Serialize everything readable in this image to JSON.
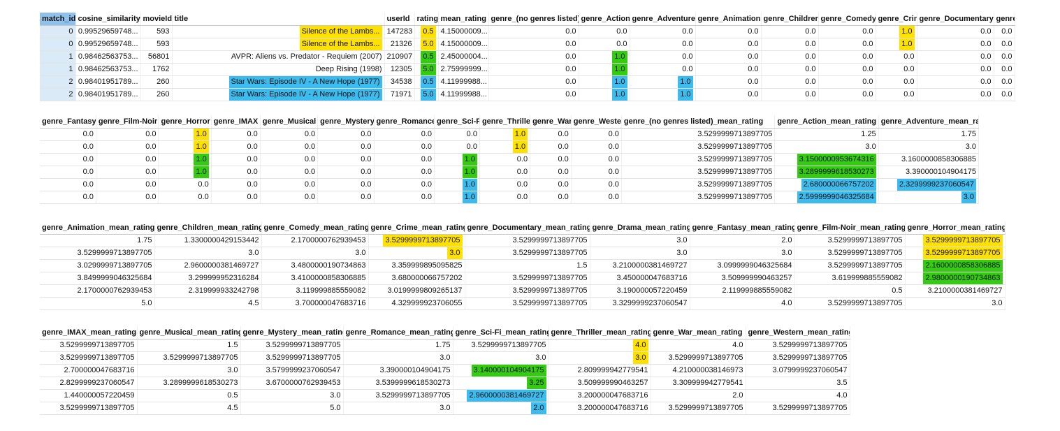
{
  "tables": [
    {
      "headers": [
        "match_id",
        "cosine_similarity",
        "movieId",
        "title",
        "userId",
        "rating",
        "mean_rating",
        "genre_(no genres listed)",
        "genre_Action",
        "genre_Adventure",
        "genre_Animation",
        "genre_Children",
        "genre_Comedy",
        "genre_Crime",
        "genre_Documentary",
        "genre_Drama"
      ],
      "rows": [
        [
          "0",
          "0.99529659748...",
          "593",
          "Silence of the Lambs...",
          "147283",
          "0.5",
          "4.15000009...",
          "0.0",
          "0.0",
          "0.0",
          "0.0",
          "0.0",
          "0.0",
          "1.0",
          "0.0",
          "0.0"
        ],
        [
          "0",
          "0.99529659748...",
          "593",
          "Silence of the Lambs...",
          "21326",
          "5.0",
          "4.15000009...",
          "0.0",
          "0.0",
          "0.0",
          "0.0",
          "0.0",
          "0.0",
          "1.0",
          "0.0",
          "0.0"
        ],
        [
          "1",
          "0.98462563753...",
          "56801",
          "AVPR: Aliens vs. Predator - Requiem (2007)",
          "210907",
          "0.5",
          "2.45000004...",
          "0.0",
          "1.0",
          "0.0",
          "0.0",
          "0.0",
          "0.0",
          "0.0",
          "0.0",
          "0.0"
        ],
        [
          "1",
          "0.98462563753...",
          "1762",
          "Deep Rising (1998)",
          "12305",
          "5.0",
          "2.75999999...",
          "0.0",
          "1.0",
          "0.0",
          "0.0",
          "0.0",
          "0.0",
          "0.0",
          "0.0",
          "0.0"
        ],
        [
          "2",
          "0.98401951789...",
          "260",
          "Star Wars: Episode IV - A New Hope (1977)",
          "34538",
          "0.5",
          "4.11999988...",
          "0.0",
          "1.0",
          "1.0",
          "0.0",
          "0.0",
          "0.0",
          "0.0",
          "0.0",
          "0.0"
        ],
        [
          "2",
          "0.98401951789...",
          "260",
          "Star Wars: Episode IV - A New Hope (1977)",
          "71971",
          "5.0",
          "4.11999988...",
          "0.0",
          "1.0",
          "1.0",
          "0.0",
          "0.0",
          "0.0",
          "0.0",
          "0.0",
          "0.0"
        ]
      ]
    },
    {
      "headers": [
        "genre_Fantasy",
        "genre_Film-Noir",
        "genre_Horror",
        "genre_IMAX",
        "genre_Musical",
        "genre_Mystery",
        "genre_Romance",
        "genre_Sci-Fi",
        "genre_Thriller",
        "genre_War",
        "genre_Western",
        "genre_(no genres listed)_mean_rating",
        "genre_Action_mean_rating",
        "genre_Adventure_mean_rating"
      ],
      "rows": [
        [
          "0.0",
          "0.0",
          "1.0",
          "0.0",
          "0.0",
          "0.0",
          "0.0",
          "0.0",
          "1.0",
          "0.0",
          "0.0",
          "3.5299999713897705",
          "1.25",
          "1.75"
        ],
        [
          "0.0",
          "0.0",
          "1.0",
          "0.0",
          "0.0",
          "0.0",
          "0.0",
          "0.0",
          "1.0",
          "0.0",
          "0.0",
          "3.5299999713897705",
          "3.0",
          "3.0"
        ],
        [
          "0.0",
          "0.0",
          "1.0",
          "0.0",
          "0.0",
          "0.0",
          "0.0",
          "1.0",
          "0.0",
          "0.0",
          "0.0",
          "3.5299999713897705",
          "3.1500000953674316",
          "3.1600000858306885"
        ],
        [
          "0.0",
          "0.0",
          "1.0",
          "0.0",
          "0.0",
          "0.0",
          "0.0",
          "1.0",
          "0.0",
          "0.0",
          "0.0",
          "3.5299999713897705",
          "3.2899999618530273",
          "3.390000104904175"
        ],
        [
          "0.0",
          "0.0",
          "0.0",
          "0.0",
          "0.0",
          "0.0",
          "0.0",
          "1.0",
          "0.0",
          "0.0",
          "0.0",
          "3.5299999713897705",
          "2.680000066757202",
          "2.3299999237060547"
        ],
        [
          "0.0",
          "0.0",
          "0.0",
          "0.0",
          "0.0",
          "0.0",
          "0.0",
          "1.0",
          "0.0",
          "0.0",
          "0.0",
          "3.5299999713897705",
          "2.5999999046325684",
          "3.0"
        ]
      ]
    },
    {
      "headers": [
        "genre_Animation_mean_rating",
        "genre_Children_mean_rating",
        "genre_Comedy_mean_rating",
        "genre_Crime_mean_rating",
        "genre_Documentary_mean_rating",
        "genre_Drama_mean_rating",
        "genre_Fantasy_mean_rating",
        "genre_Film-Noir_mean_rating",
        "genre_Horror_mean_rating"
      ],
      "rows": [
        [
          "1.75",
          "1.3300000429153442",
          "2.1700000762939453",
          "3.5299999713897705",
          "3.5299999713897705",
          "3.0",
          "2.0",
          "3.5299999713897705",
          "3.5299999713897705"
        ],
        [
          "3.5299999713897705",
          "3.0",
          "3.0",
          "3.0",
          "3.5299999713897705",
          "3.0",
          "3.0",
          "3.5299999713897705",
          "3.5299999713897705"
        ],
        [
          "3.0299999713897705",
          "2.9600000381469727",
          "3.4800000190734863",
          "3.359999895095825",
          "1.5",
          "3.2100000381469727",
          "3.0999999046325684",
          "3.5299999713897705",
          "2.1600000858306885"
        ],
        [
          "3.8499999046325684",
          "3.299999952316284",
          "3.4100000858306885",
          "3.680000066757202",
          "3.5299999713897705",
          "3.450000047683716",
          "3.509999990463257",
          "3.619999885559082",
          "2.9800000190734863"
        ],
        [
          "2.1700000762939453",
          "2.319999933242798",
          "3.119999885559082",
          "3.0199999809265137",
          "3.5299999713897705",
          "3.190000057220459",
          "2.119999885559082",
          "0.5",
          "3.2100000381469727"
        ],
        [
          "5.0",
          "4.5",
          "3.700000047683716",
          "4.329999923706055",
          "3.5299999713897705",
          "3.3299999237060547",
          "4.0",
          "3.5299999713897705",
          "3.0"
        ]
      ]
    },
    {
      "headers": [
        "genre_IMAX_mean_rating",
        "genre_Musical_mean_rating",
        "genre_Mystery_mean_rating",
        "genre_Romance_mean_rating",
        "genre_Sci-Fi_mean_rating",
        "genre_Thriller_mean_rating",
        "genre_War_mean_rating",
        "genre_Western_mean_rating"
      ],
      "rows": [
        [
          "3.5299999713897705",
          "1.5",
          "3.5299999713897705",
          "1.75",
          "3.5299999713897705",
          "4.0",
          "4.0",
          "3.5299999713897705"
        ],
        [
          "3.5299999713897705",
          "3.5299999713897705",
          "3.5299999713897705",
          "3.0",
          "3.0",
          "3.0",
          "3.5299999713897705",
          "3.5299999713897705"
        ],
        [
          "2.700000047683716",
          "3.0",
          "3.5799999237060547",
          "3.390000104904175",
          "3.140000104904175",
          "2.809999942779541",
          "4.210000038146973",
          "3.0799999237060547"
        ],
        [
          "2.8299999237060547",
          "3.2899999618530273",
          "3.6700000762939453",
          "3.5399999618530273",
          "3.25",
          "3.509999990463257",
          "3.309999942779541",
          "3.5"
        ],
        [
          "1.440000057220459",
          "0.5",
          "3.0",
          "3.5299999713897705",
          "2.9600000381469727",
          "3.200000047683716",
          "2.0",
          "4.0"
        ],
        [
          "3.5299999713897705",
          "4.5",
          "5.0",
          "3.0",
          "2.0",
          "3.200000047683716",
          "3.5299999713897705",
          "3.5299999713897705"
        ]
      ]
    }
  ],
  "highlight_colors": {
    "y": "#ffe100",
    "g": "#33cc11",
    "b": "#3bbbee"
  }
}
